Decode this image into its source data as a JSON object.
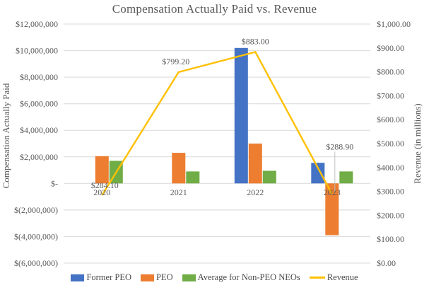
{
  "colors": {
    "background": "#FFFFFF",
    "gridline": "#D9D9D9",
    "axis_text": "#595959",
    "title_text": "#595959",
    "legend_text": "#4A4A4A",
    "leader_line": "#BFBFBF"
  },
  "chart_data": {
    "type": "combo-bar-line",
    "title": "Compensation Actually Paid vs. Revenue",
    "categories": [
      "2020",
      "2021",
      "2022",
      "2023"
    ],
    "series": [
      {
        "name": "Former PEO",
        "type": "bar",
        "axis": "left",
        "color": "#4472C4",
        "values": [
          null,
          null,
          10200000,
          1550000
        ]
      },
      {
        "name": "PEO",
        "type": "bar",
        "axis": "left",
        "color": "#ED7D31",
        "values": [
          2050000,
          2300000,
          3000000,
          -3900000
        ]
      },
      {
        "name": "Average for Non-PEO NEOs",
        "type": "bar",
        "axis": "left",
        "color": "#70AD47",
        "values": [
          1700000,
          900000,
          950000,
          900000
        ]
      },
      {
        "name": "Revenue",
        "type": "line",
        "axis": "right",
        "color": "#FFC000",
        "values": [
          284.1,
          799.2,
          883.0,
          288.9
        ],
        "data_labels": [
          "$284.10",
          "$799.20",
          "$883.00",
          "$288.90"
        ]
      }
    ],
    "left_axis": {
      "label": "Compensation Actually Paid",
      "min": -6000000,
      "max": 12000000,
      "step": 2000000,
      "tick_values": [
        12000000,
        10000000,
        8000000,
        6000000,
        4000000,
        2000000,
        0,
        -2000000,
        -4000000,
        -6000000
      ],
      "tick_labels": [
        "$12,000,000",
        "$10,000,000",
        "$8,000,000",
        "$6,000,000",
        "$4,000,000",
        "$2,000,000",
        "$-",
        "$(2,000,000)",
        "$(4,000,000)",
        "$(6,000,000)"
      ]
    },
    "right_axis": {
      "label": "Revenue (in millions)",
      "min": 0,
      "max": 1000,
      "step": 100,
      "tick_values": [
        1000,
        900,
        800,
        700,
        600,
        500,
        400,
        300,
        200,
        100,
        0
      ],
      "tick_labels": [
        "$1,000.00",
        "$900.00",
        "$800.00",
        "$700.00",
        "$600.00",
        "$500.00",
        "$400.00",
        "$300.00",
        "$200.00",
        "$100.00",
        "$0.00"
      ]
    },
    "legend": {
      "position": "bottom"
    },
    "grid": true
  }
}
